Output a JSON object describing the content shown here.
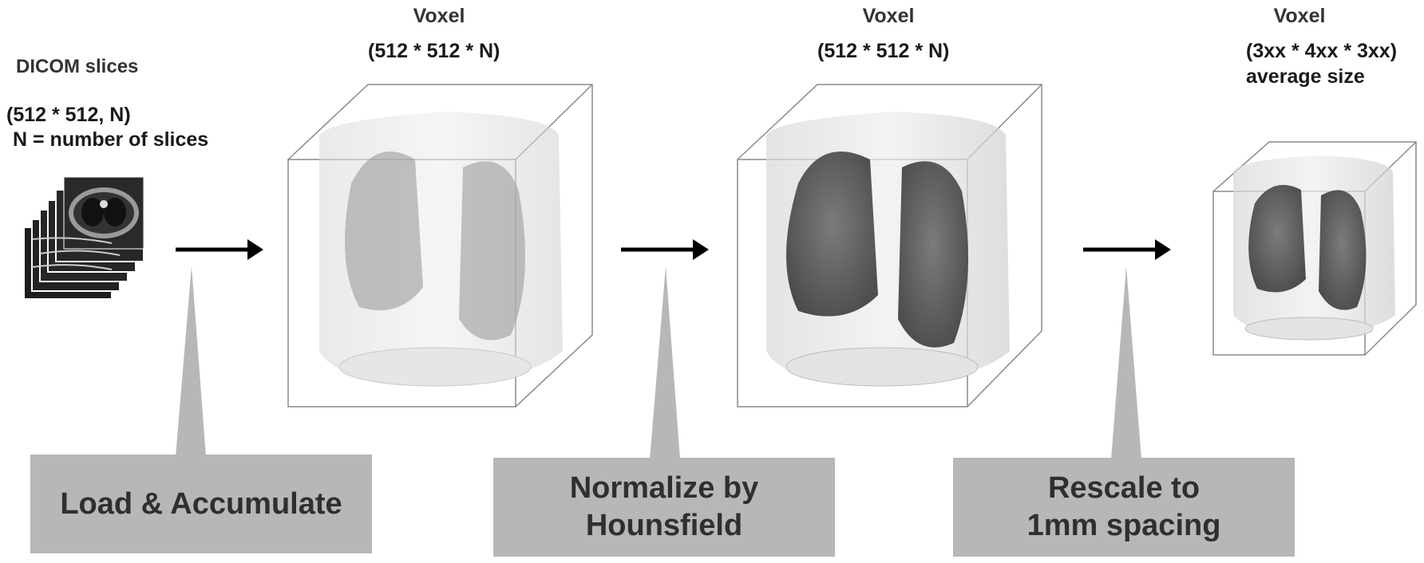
{
  "input": {
    "title": "DICOM slices",
    "dims_line1": "(512 * 512,  N)",
    "dims_line2": "N = number of slices"
  },
  "stage1": {
    "title": "Voxel",
    "dims": "(512 * 512 * N)"
  },
  "stage2": {
    "title": "Voxel",
    "dims": "(512 * 512 * N)"
  },
  "stage3": {
    "title": "Voxel",
    "dims_line1": "(3xx * 4xx * 3xx)",
    "dims_line2": "average size"
  },
  "steps": [
    {
      "line1": "Load & Accumulate"
    },
    {
      "line1": "Normalize by",
      "line2": "Hounsfield"
    },
    {
      "line1": "Rescale to",
      "line2": "1mm spacing"
    }
  ],
  "colors": {
    "callout": "#b7b7b7",
    "arrow": "#000000",
    "box_edge": "#8a8a8a"
  }
}
